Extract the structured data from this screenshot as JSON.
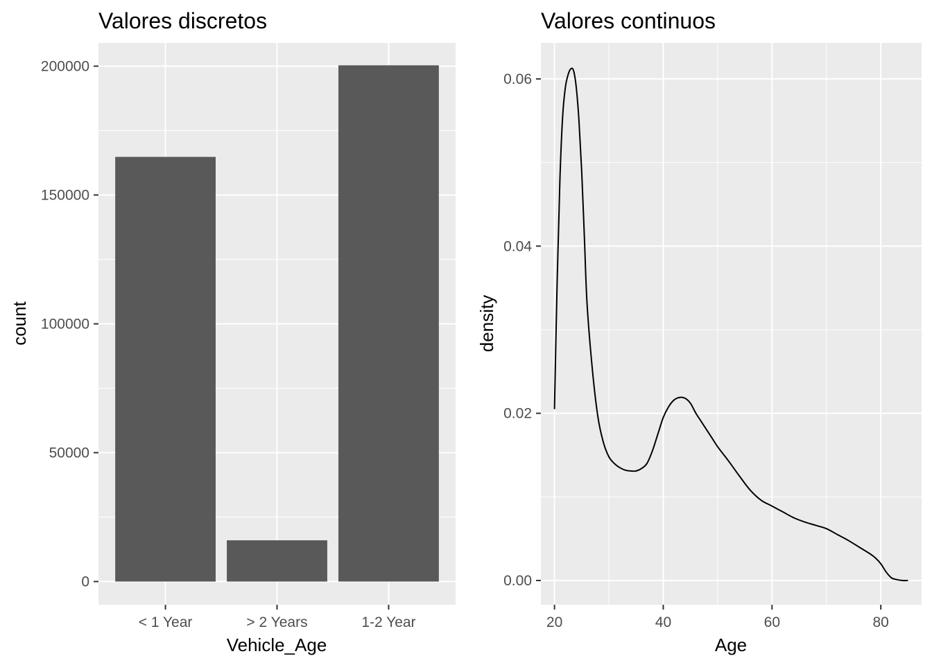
{
  "chart_data": [
    {
      "type": "bar",
      "title": "Valores discretos",
      "xlabel": "Vehicle_Age",
      "ylabel": "count",
      "categories": [
        "< 1 Year",
        "> 2 Years",
        "1-2 Year"
      ],
      "values": [
        164786,
        16007,
        200316
      ],
      "ylim": [
        -9000,
        209000
      ],
      "yticks": [
        0,
        50000,
        100000,
        150000,
        200000
      ],
      "ytick_labels": [
        "0",
        "50000",
        "100000",
        "150000",
        "200000"
      ],
      "grid": true
    },
    {
      "type": "line",
      "title": "Valores continuos",
      "xlabel": "Age",
      "ylabel": "density",
      "xlim": [
        17.5,
        87.5
      ],
      "ylim": [
        -0.0029,
        0.0643
      ],
      "xticks": [
        20,
        40,
        60,
        80
      ],
      "xtick_labels": [
        "20",
        "40",
        "60",
        "80"
      ],
      "yticks": [
        0.0,
        0.02,
        0.04,
        0.06
      ],
      "ytick_labels": [
        "0.00",
        "0.02",
        "0.04",
        "0.06"
      ],
      "grid": true,
      "series": [
        {
          "x": [
            20,
            20.5,
            21,
            21.5,
            22,
            22.5,
            23,
            23.5,
            24,
            24.5,
            25,
            25.5,
            26,
            27,
            28,
            29,
            30,
            31,
            32,
            33,
            34,
            35,
            36,
            37,
            38,
            39,
            40,
            41,
            42,
            43,
            44,
            45,
            46,
            47,
            48,
            49,
            50,
            52,
            54,
            56,
            58,
            60,
            62,
            64,
            66,
            68,
            70,
            72,
            74,
            76,
            78,
            79,
            80,
            81,
            82,
            83,
            84,
            85
          ],
          "y": [
            0.0205,
            0.036,
            0.048,
            0.0555,
            0.059,
            0.0605,
            0.0612,
            0.061,
            0.059,
            0.055,
            0.049,
            0.041,
            0.033,
            0.025,
            0.0195,
            0.0165,
            0.0148,
            0.014,
            0.0135,
            0.0132,
            0.0131,
            0.0131,
            0.0134,
            0.014,
            0.0155,
            0.0175,
            0.0195,
            0.0208,
            0.0216,
            0.0219,
            0.0218,
            0.0212,
            0.02,
            0.019,
            0.018,
            0.017,
            0.016,
            0.0143,
            0.0125,
            0.0108,
            0.0096,
            0.0089,
            0.0082,
            0.0075,
            0.007,
            0.0066,
            0.0062,
            0.0055,
            0.0048,
            0.004,
            0.0032,
            0.0027,
            0.002,
            0.001,
            0.0003,
            0.0001,
            0.0,
            0.0
          ]
        }
      ]
    }
  ]
}
